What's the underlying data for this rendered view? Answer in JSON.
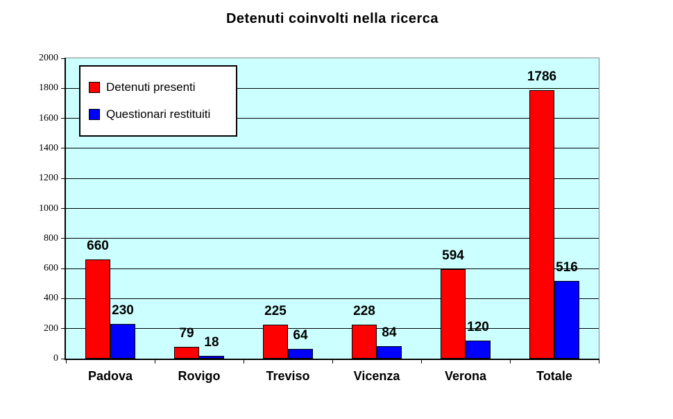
{
  "chart_data": {
    "type": "bar",
    "title": "Detenuti coinvolti nella ricerca",
    "categories": [
      "Padova",
      "Rovigo",
      "Treviso",
      "Vicenza",
      "Verona",
      "Totale"
    ],
    "series": [
      {
        "name": "Detenuti presenti",
        "color": "#FF0000",
        "values": [
          660,
          79,
          225,
          228,
          594,
          1786
        ]
      },
      {
        "name": "Questionari restituiti",
        "color": "#0000FF",
        "values": [
          230,
          18,
          64,
          84,
          120,
          516
        ]
      }
    ],
    "ylim": [
      0,
      2000
    ],
    "ytick_step": 200,
    "ytick_labels": [
      "0",
      "200",
      "400",
      "600",
      "800",
      "1000",
      "1200",
      "1400",
      "1600",
      "1800",
      "2000"
    ],
    "grid": true,
    "data_labels": true,
    "legend_position": "top-left",
    "plot_background": "#CCFFFF",
    "gridline_color": "#000000",
    "outer_background": "#FFFFFF"
  }
}
